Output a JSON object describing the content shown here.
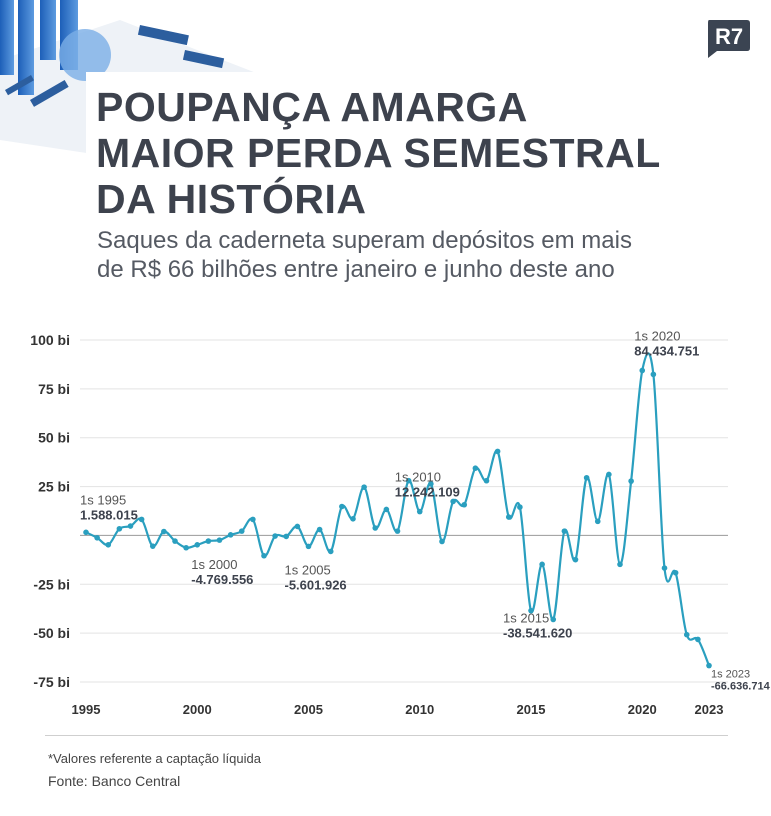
{
  "header": {
    "title_lines": [
      "POUPANÇA AMARGA",
      "MAIOR PERDA SEMESTRAL",
      "DA HISTÓRIA"
    ],
    "subtitle_lines": [
      "Saques da caderneta superam depósitos em mais",
      "de R$ 66 bilhões entre janeiro e junho deste ano"
    ],
    "logo_text": "R7"
  },
  "colors": {
    "line": "#2a9fbf",
    "title": "#3d424d",
    "logo": "#3b4452",
    "grid": "#e3e3e3",
    "zero": "#9a9a9a"
  },
  "chart_data": {
    "type": "line",
    "title": "POUPANÇA AMARGA MAIOR PERDA SEMESTRAL DA HISTÓRIA",
    "xlabel": "",
    "ylabel": "",
    "unit": "bi (R$)",
    "ylim": [
      -75,
      100
    ],
    "y_ticks": [
      100,
      75,
      50,
      25,
      0,
      -25,
      -50,
      -75
    ],
    "y_tick_labels": [
      "100 bi",
      "75 bi",
      "50 bi",
      "25 bi",
      "",
      "-25 bi",
      "-50 bi",
      "-75 bi"
    ],
    "x_ticks": [
      {
        "index": 0,
        "label": "1995"
      },
      {
        "index": 10,
        "label": "2000"
      },
      {
        "index": 20,
        "label": "2005"
      },
      {
        "index": 30,
        "label": "2010"
      },
      {
        "index": 40,
        "label": "2015"
      },
      {
        "index": 50,
        "label": "2020"
      },
      {
        "index": 56,
        "label": "2023"
      }
    ],
    "x_description": "semesters from 1s 1995 to 1s 2023",
    "values": [
      1.6,
      -1.2,
      -4.8,
      3.4,
      4.8,
      8.2,
      -5.5,
      2.0,
      -2.9,
      -6.3,
      -4.8,
      -2.9,
      -2.4,
      0.3,
      2.2,
      8.2,
      -10.4,
      -0.3,
      -0.5,
      4.6,
      -5.6,
      3.0,
      -8.2,
      14.8,
      8.5,
      24.7,
      3.8,
      13.3,
      2.2,
      28.0,
      12.2,
      26.4,
      -3.1,
      17.4,
      15.7,
      34.4,
      28.0,
      43.0,
      9.4,
      14.5,
      -38.5,
      -14.8,
      -43.0,
      2.2,
      -12.4,
      29.5,
      7.2,
      31.2,
      -14.8,
      27.8,
      84.4,
      82.4,
      -16.7,
      -19.1,
      -50.8,
      -53.2,
      -66.6
    ],
    "annotations": [
      {
        "index": 0,
        "period": "1s 1995",
        "value": "1.588.015"
      },
      {
        "index": 10,
        "period": "1s 2000",
        "value": "-4.769.556"
      },
      {
        "index": 20,
        "period": "1s 2005",
        "value": "-5.601.926"
      },
      {
        "index": 30,
        "period": "1s 2010",
        "value": "12.242.109"
      },
      {
        "index": 40,
        "period": "1s 2015",
        "value": "-38.541.620"
      },
      {
        "index": 50,
        "period": "1s 2020",
        "value": "84.434.751"
      },
      {
        "index": 56,
        "period": "1s 2023",
        "value": "-66.636.714"
      }
    ],
    "grid": true,
    "legend": "none"
  },
  "footer": {
    "note": "*Valores referente a captação líquida",
    "source": "Fonte: Banco Central"
  }
}
